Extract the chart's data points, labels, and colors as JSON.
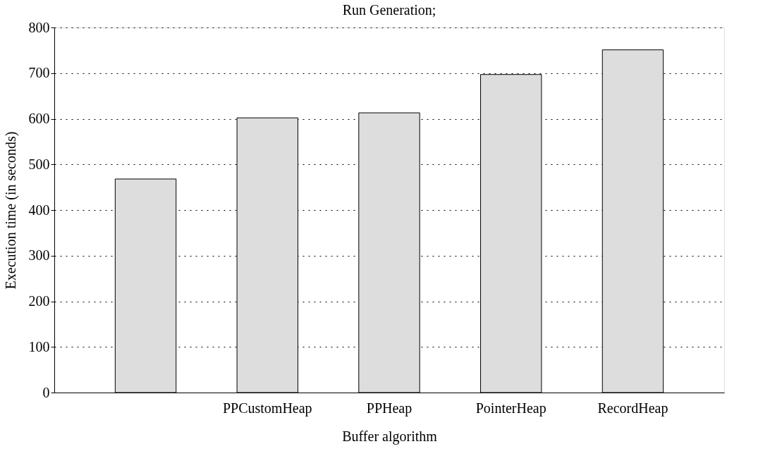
{
  "chart_data": {
    "type": "bar",
    "title": "Run Generation;",
    "xlabel": "Buffer algorithm",
    "ylabel": "Execution time (in seconds)",
    "categories": [
      null,
      "PPCustomHeap",
      "PPHeap",
      "PointerHeap",
      "RecordHeap"
    ],
    "values": [
      468,
      602,
      613,
      697,
      751
    ],
    "color": "#dddddd",
    "ylim": [
      0,
      800
    ],
    "yticks": [
      0,
      100,
      200,
      300,
      400,
      500,
      600,
      700,
      800
    ],
    "grid": "y",
    "line_style": "dotted"
  }
}
